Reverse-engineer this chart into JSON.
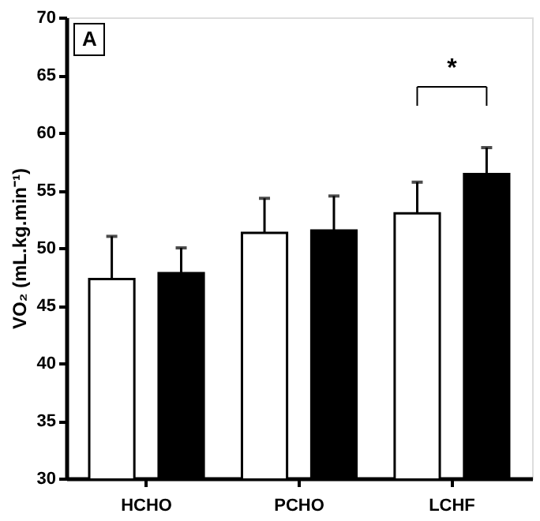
{
  "chart_data": {
    "type": "bar",
    "ylabel": "VO₂ (mL.kg.min⁻¹)",
    "categories": [
      "HCHO",
      "PCHO",
      "LCHF"
    ],
    "series": [
      {
        "color": "#ffffff",
        "values": [
          47.3,
          51.3,
          53.0
        ],
        "errors": [
          [
            47.3,
            51.0
          ],
          [
            51.3,
            54.3
          ],
          [
            53.0,
            55.7
          ]
        ]
      },
      {
        "color": "#000000",
        "values": [
          47.8,
          51.5,
          56.4
        ],
        "errors": [
          [
            47.8,
            50.0
          ],
          [
            51.5,
            54.5
          ],
          [
            56.4,
            58.7
          ]
        ]
      }
    ],
    "ylim": [
      30,
      70
    ],
    "yticks": [
      30,
      35,
      40,
      45,
      50,
      55,
      60,
      65,
      70
    ],
    "grid": false,
    "legend": false,
    "annotations": [
      "A",
      "*"
    ]
  }
}
